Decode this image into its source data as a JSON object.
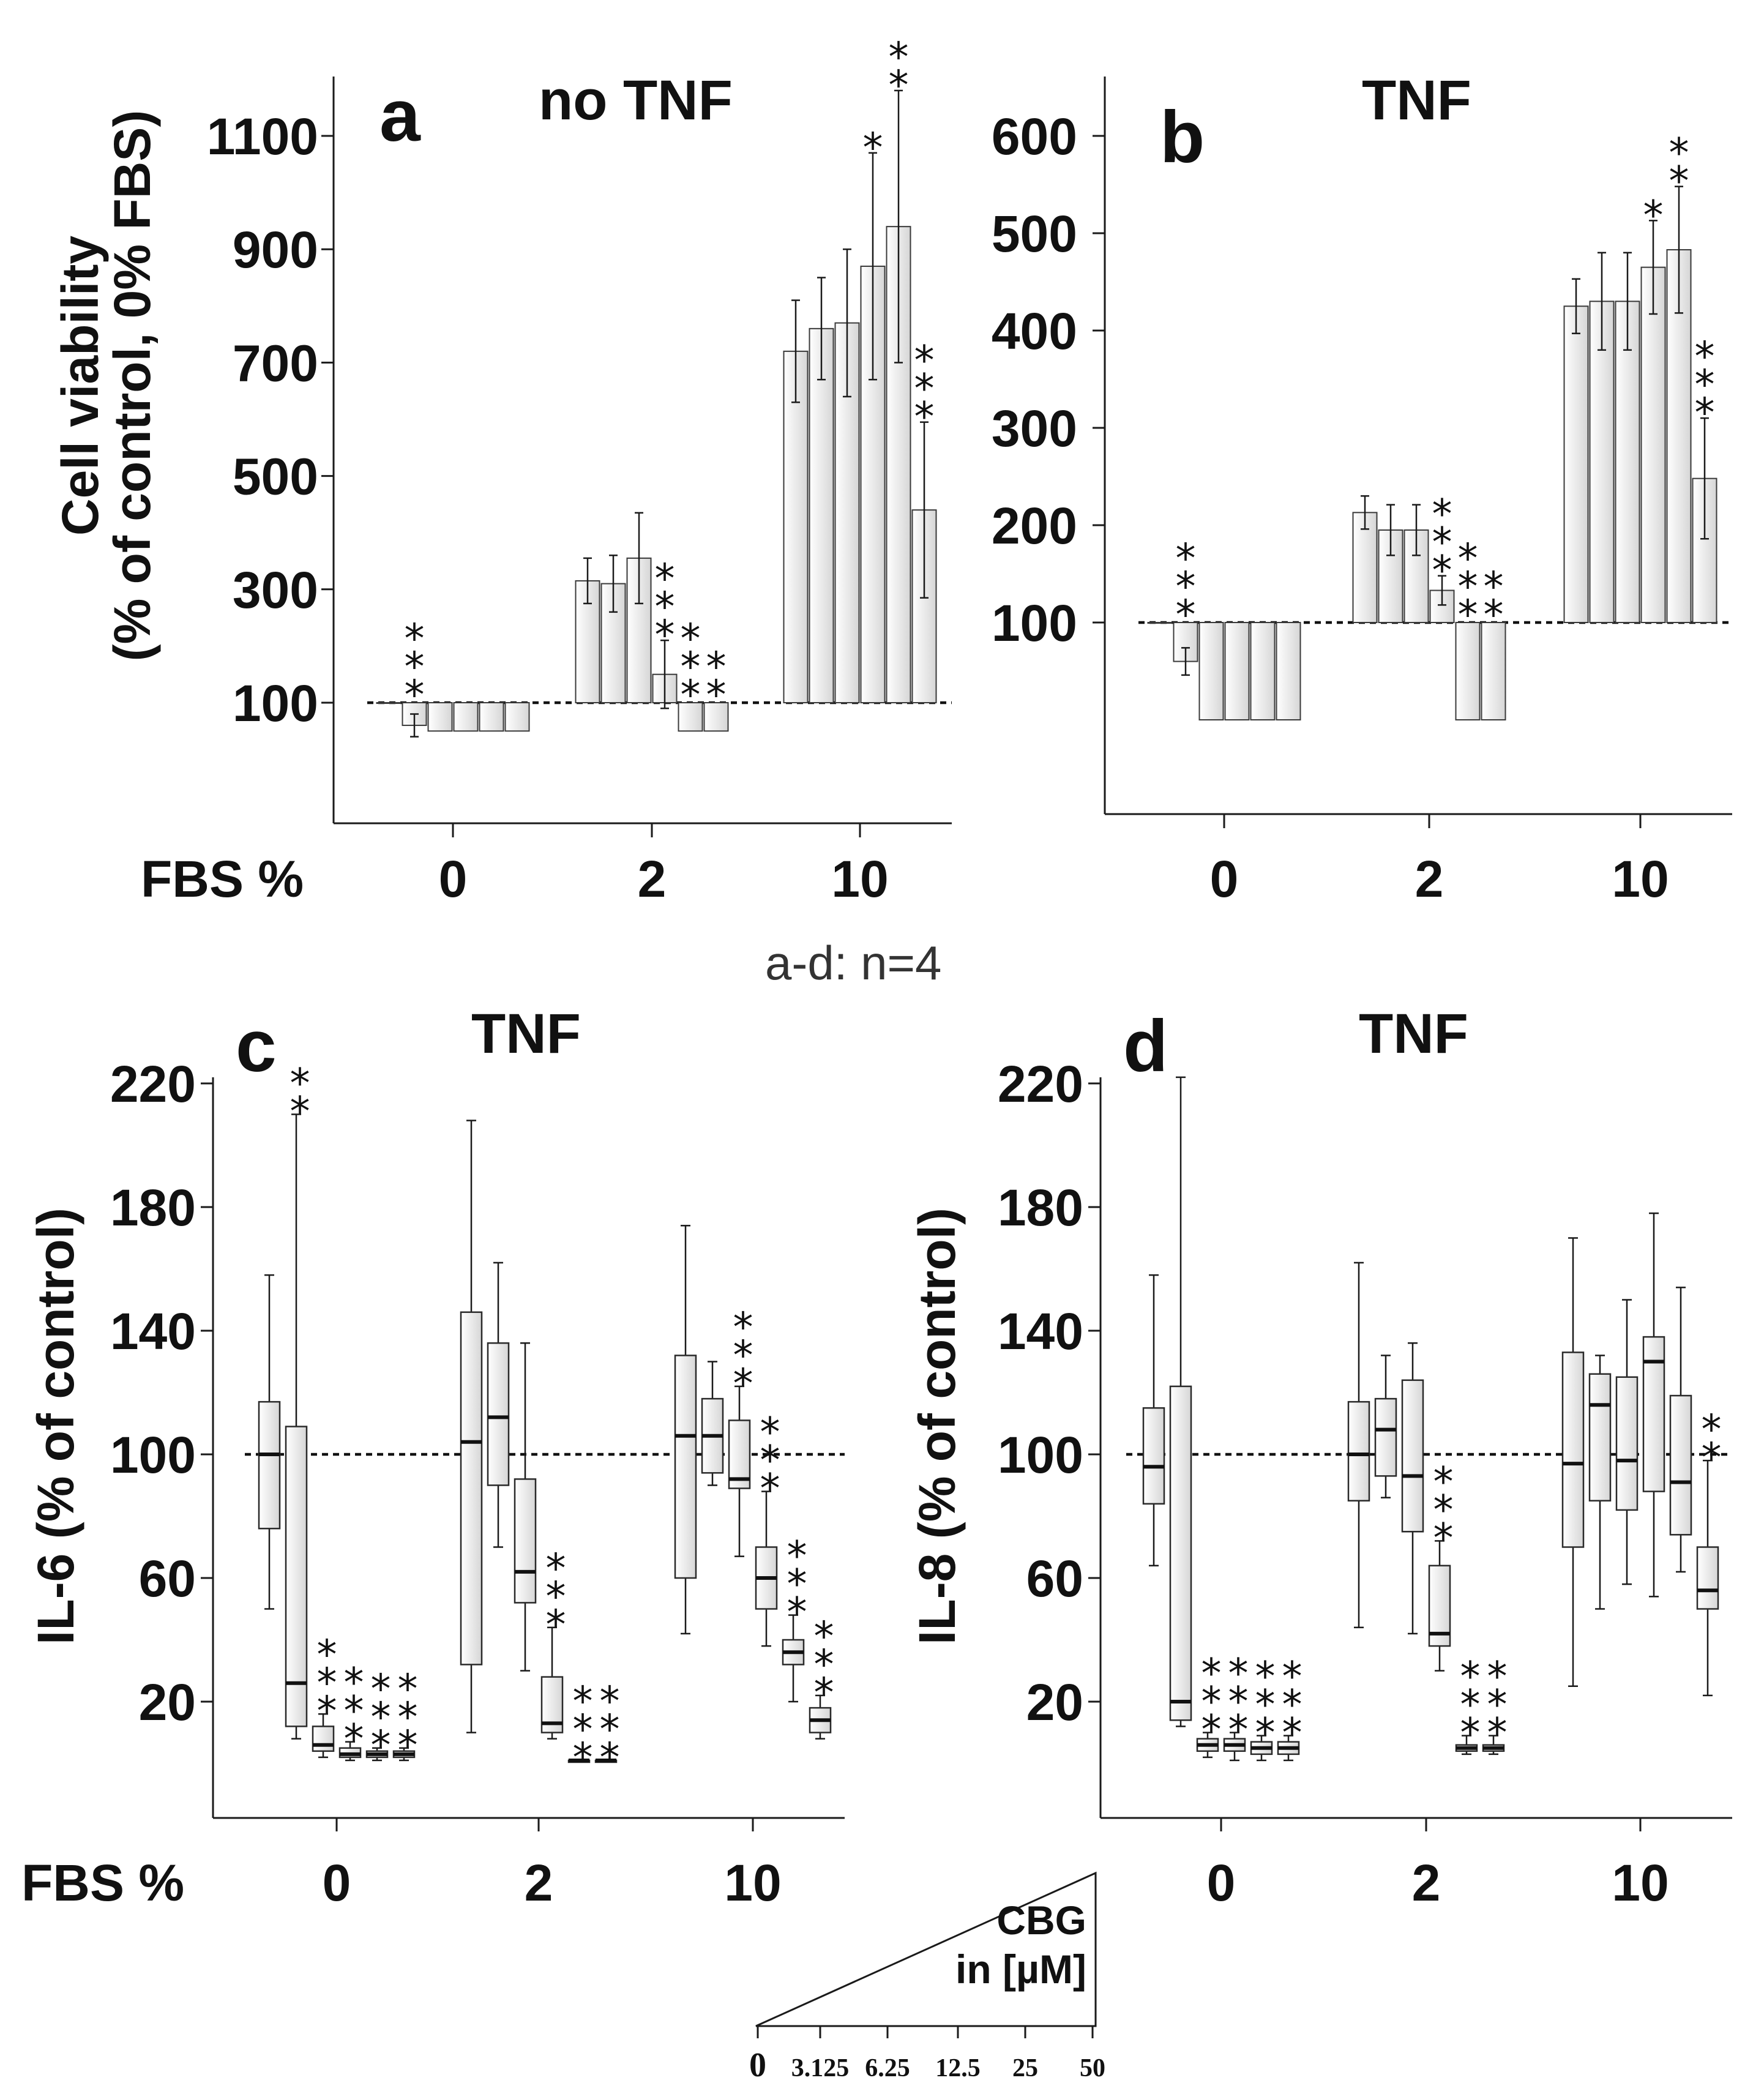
{
  "figure": {
    "note": "a-d: n=4",
    "fbs_label": "FBS %",
    "cbg_label_1": "CBG",
    "cbg_label_2": "in [µM]",
    "cbg_concentrations": [
      "0",
      "3.125",
      "6.25",
      "12.5",
      "25",
      "50"
    ],
    "colors": {
      "bar_fill_light": "#ffffff",
      "bar_fill_dark": "#d9d9d9",
      "axis": "#1a1a1a"
    }
  },
  "chart_data": [
    {
      "panel": "a",
      "type": "bar",
      "title": "no TNF",
      "ylabel_line1": "Cell viability",
      "ylabel_line2": "(% of control, 0% FBS)",
      "xlabel": "FBS %",
      "ylim": [
        -100,
        1200
      ],
      "yticks": [
        100,
        300,
        500,
        700,
        900,
        1100
      ],
      "baseline": 100,
      "categories": [
        "0",
        "2",
        "10"
      ],
      "series_names": [
        "0",
        "3.125",
        "6.25",
        "12.5",
        "25",
        "50"
      ],
      "values": [
        [
          100,
          60,
          50,
          50,
          50,
          50
        ],
        [
          315,
          310,
          355,
          150,
          50,
          50
        ],
        [
          720,
          760,
          770,
          870,
          940,
          440
        ]
      ],
      "errors": [
        [
          0,
          20,
          0,
          0,
          0,
          0
        ],
        [
          40,
          50,
          80,
          60,
          0,
          0
        ],
        [
          90,
          90,
          130,
          200,
          240,
          155
        ]
      ],
      "significance": [
        [
          "",
          "***",
          "",
          "",
          "",
          ""
        ],
        [
          "",
          "",
          "",
          "***",
          "***",
          "**"
        ],
        [
          "",
          "",
          "",
          "*",
          "**",
          "***"
        ]
      ]
    },
    {
      "panel": "b",
      "type": "bar",
      "title": "TNF",
      "xlabel": "FBS %",
      "ylim": [
        -100,
        660
      ],
      "yticks": [
        100,
        200,
        300,
        400,
        500,
        600
      ],
      "baseline": 100,
      "categories": [
        "0",
        "2",
        "10"
      ],
      "series_names": [
        "0",
        "3.125",
        "6.25",
        "12.5",
        "25",
        "50"
      ],
      "values": [
        [
          100,
          60,
          0,
          0,
          0,
          0
        ],
        [
          213,
          195,
          195,
          133,
          0,
          0
        ],
        [
          425,
          430,
          430,
          465,
          483,
          248
        ]
      ],
      "errors": [
        [
          0,
          14,
          0,
          0,
          0,
          0
        ],
        [
          17,
          26,
          26,
          15,
          0,
          0
        ],
        [
          28,
          50,
          50,
          48,
          65,
          62
        ]
      ],
      "significance": [
        [
          "",
          "***",
          "",
          "",
          "",
          ""
        ],
        [
          "",
          "",
          "",
          "***",
          "***",
          "**"
        ],
        [
          "",
          "",
          "",
          "*",
          "**",
          "***"
        ]
      ]
    },
    {
      "panel": "c",
      "type": "box",
      "title": "TNF",
      "ylabel": "IL-6 (% of control)",
      "xlabel": "FBS %",
      "ylim": [
        -25,
        220
      ],
      "yticks": [
        20,
        60,
        100,
        140,
        180,
        220
      ],
      "reference": 100,
      "categories": [
        "0",
        "2",
        "10"
      ],
      "series_names": [
        "0",
        "3.125",
        "6.25",
        "12.5",
        "25",
        "50"
      ],
      "boxes": [
        [
          [
            50,
            76,
            100,
            117,
            158
          ],
          [
            8,
            12,
            26,
            109,
            210
          ],
          [
            2,
            4,
            6,
            12,
            16
          ],
          [
            1,
            2,
            3,
            5,
            7
          ],
          [
            1,
            2,
            3,
            4,
            5
          ],
          [
            1,
            2,
            3,
            4,
            5
          ]
        ],
        [
          [
            10,
            32,
            104,
            146,
            208
          ],
          [
            70,
            90,
            112,
            136,
            162
          ],
          [
            30,
            52,
            62,
            92,
            136
          ],
          [
            8,
            10,
            13,
            28,
            44
          ],
          [
            1,
            1,
            1,
            1,
            1
          ],
          [
            1,
            1,
            1,
            1,
            1
          ]
        ],
        [
          [
            42,
            60,
            106,
            132,
            174
          ],
          [
            90,
            94,
            106,
            118,
            130
          ],
          [
            67,
            89,
            92,
            111,
            122
          ],
          [
            38,
            50,
            60,
            70,
            88
          ],
          [
            20,
            32,
            36,
            40,
            48
          ],
          [
            8,
            10,
            14,
            18,
            22
          ]
        ]
      ],
      "significance": [
        [
          "",
          "**",
          "***",
          "***",
          "***",
          "***"
        ],
        [
          "",
          "",
          "",
          "***",
          "***",
          "***"
        ],
        [
          "",
          "",
          "***",
          "***",
          "***",
          "***"
        ]
      ]
    },
    {
      "panel": "d",
      "type": "box",
      "title": "TNF",
      "ylabel": "IL-8 (% of control)",
      "xlabel": "FBS %",
      "ylim": [
        -25,
        220
      ],
      "yticks": [
        20,
        60,
        100,
        140,
        180,
        220
      ],
      "reference": 100,
      "categories": [
        "0",
        "2",
        "10"
      ],
      "series_names": [
        "0",
        "3.125",
        "6.25",
        "12.5",
        "25",
        "50"
      ],
      "boxes": [
        [
          [
            64,
            84,
            96,
            115,
            158
          ],
          [
            12,
            14,
            20,
            122,
            222
          ],
          [
            2,
            4,
            6,
            8,
            10
          ],
          [
            1,
            4,
            6,
            8,
            10
          ],
          [
            1,
            3,
            5,
            7,
            9
          ],
          [
            1,
            3,
            5,
            7,
            9
          ]
        ],
        [
          [
            44,
            85,
            100,
            117,
            162
          ],
          [
            86,
            93,
            108,
            118,
            132
          ],
          [
            42,
            75,
            93,
            124,
            136
          ],
          [
            30,
            38,
            42,
            64,
            72
          ],
          [
            3,
            4,
            5,
            6,
            9
          ],
          [
            3,
            4,
            5,
            6,
            9
          ]
        ],
        [
          [
            25,
            70,
            97,
            133,
            170
          ],
          [
            50,
            85,
            116,
            126,
            132
          ],
          [
            58,
            82,
            98,
            125,
            150
          ],
          [
            54,
            88,
            130,
            138,
            178
          ],
          [
            62,
            74,
            91,
            119,
            154
          ],
          [
            22,
            50,
            56,
            70,
            98
          ]
        ]
      ],
      "significance": [
        [
          "",
          "",
          "***",
          "***",
          "***",
          "***"
        ],
        [
          "",
          "",
          "",
          "***",
          "***",
          "***"
        ],
        [
          "",
          "",
          "",
          "",
          "",
          "**"
        ]
      ]
    }
  ]
}
